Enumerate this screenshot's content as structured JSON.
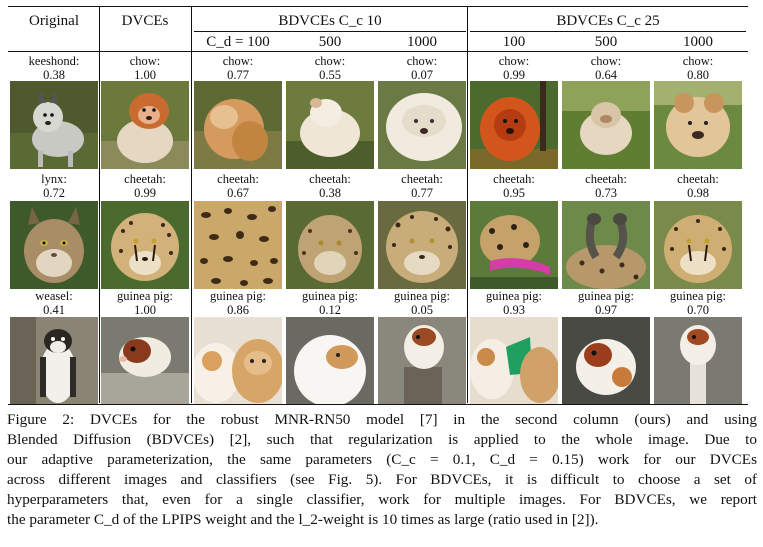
{
  "header": {
    "original": "Original",
    "dvces": "DVCEs",
    "group1": "BDVCEs C_c 10",
    "group2": "BDVCEs C_c 25",
    "cd_prefix": "C_d = 100",
    "sub": [
      "100",
      "500",
      "1000",
      "100",
      "500",
      "1000"
    ]
  },
  "rows": [
    {
      "cells": [
        {
          "label": "keeshond:",
          "score": "0.38",
          "image": "keeshond-dog"
        },
        {
          "label": "chow:",
          "score": "1.00",
          "image": "chow-dog"
        },
        {
          "label": "chow:",
          "score": "0.77",
          "image": "chow-dog-blurred"
        },
        {
          "label": "chow:",
          "score": "0.55",
          "image": "white-fluffy-dog"
        },
        {
          "label": "chow:",
          "score": "0.07",
          "image": "white-fluffy-dog-closeup"
        },
        {
          "label": "chow:",
          "score": "0.99",
          "image": "orange-lion-like-dog"
        },
        {
          "label": "chow:",
          "score": "0.64",
          "image": "fluffy-dog-on-grass"
        },
        {
          "label": "chow:",
          "score": "0.80",
          "image": "chow-face"
        }
      ]
    },
    {
      "cells": [
        {
          "label": "lynx:",
          "score": "0.72",
          "image": "lynx"
        },
        {
          "label": "cheetah:",
          "score": "0.99",
          "image": "cheetah-face"
        },
        {
          "label": "cheetah:",
          "score": "0.67",
          "image": "spotted-fur-texture"
        },
        {
          "label": "cheetah:",
          "score": "0.38",
          "image": "spotted-cat"
        },
        {
          "label": "cheetah:",
          "score": "0.77",
          "image": "cheetah-lynx-face"
        },
        {
          "label": "cheetah:",
          "score": "0.95",
          "image": "distorted-spotted-animal"
        },
        {
          "label": "cheetah:",
          "score": "0.73",
          "image": "spotted-birds"
        },
        {
          "label": "cheetah:",
          "score": "0.98",
          "image": "cheetah-lynx-hybrid"
        }
      ]
    },
    {
      "cells": [
        {
          "label": "weasel:",
          "score": "0.41",
          "image": "weasel-on-tree"
        },
        {
          "label": "guinea pig:",
          "score": "1.00",
          "image": "guinea-pig"
        },
        {
          "label": "guinea pig:",
          "score": "0.86",
          "image": "guinea-pigs-pair"
        },
        {
          "label": "guinea pig:",
          "score": "0.12",
          "image": "white-guinea-pig"
        },
        {
          "label": "guinea pig:",
          "score": "0.05",
          "image": "guinea-pig-on-trunk"
        },
        {
          "label": "guinea pig:",
          "score": "0.93",
          "image": "guinea-pig-green-patch"
        },
        {
          "label": "guinea pig:",
          "score": "0.97",
          "image": "guinea-pig-closeup"
        },
        {
          "label": "guinea pig:",
          "score": "0.70",
          "image": "guinea-pig-on-pole"
        }
      ]
    }
  ],
  "caption": [
    "Figure 2: DVCEs for the robust MNR-RN50 model [7] in the second column (ours) and using",
    "Blended Diffusion (BDVCEs) [2], such that regularization is applied to the whole image. Due to",
    "our adaptive parameterization, the same parameters (C_c = 0.1, C_d = 0.15) work for our DVCEs",
    "across different images and classifiers (see Fig. 5). For BDVCEs, it is difficult to choose a set of",
    "hyperparameters that, even for a single classifier, work for multiple images. For BDVCEs, we report",
    "the parameter C_d of the LPIPS weight and the l_2-weight is 10 times as large (ratio used in [2])."
  ]
}
